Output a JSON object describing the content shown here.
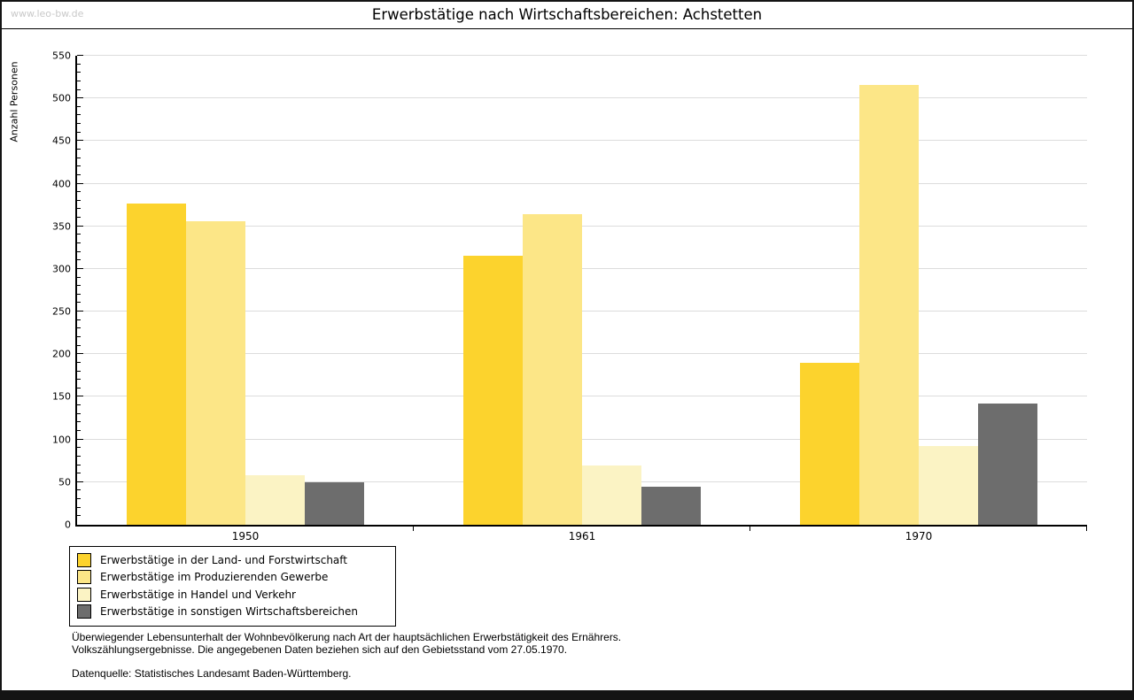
{
  "header": {
    "site": "www.leo-bw.de"
  },
  "chart_data": {
    "type": "bar",
    "title": "Erwerbstätige nach Wirtschaftsbereichen: Achstetten",
    "ylabel": "Anzahl Personen",
    "xlabel": "",
    "categories": [
      "1950",
      "1961",
      "1970"
    ],
    "series": [
      {
        "name": "Erwerbstätige in der Land- und Forstwirtschaft",
        "color": "#fcd32d",
        "values": [
          377,
          316,
          190
        ]
      },
      {
        "name": "Erwerbstätige im Produzierenden Gewerbe",
        "color": "#fce687",
        "values": [
          356,
          364,
          516
        ]
      },
      {
        "name": "Erwerbstätige in Handel und Verkehr",
        "color": "#fbf3c4",
        "values": [
          58,
          70,
          92
        ]
      },
      {
        "name": "Erwerbstätige in sonstigen Wirtschaftsbereichen",
        "color": "#6d6d6d",
        "values": [
          50,
          45,
          142
        ]
      }
    ],
    "ylim": [
      0,
      550
    ],
    "ytick_step": 50,
    "minor_tick_step": 10,
    "grid": true,
    "legend_position": "bottom-left",
    "axis_color": "#000000",
    "grid_color": "#dcdcdc"
  },
  "footer": {
    "note_line1": "Überwiegender Lebensunterhalt der Wohnbevölkerung nach Art der hauptsächlichen Erwerbstätigkeit des Ernährers.",
    "note_line2": "Volkszählungsergebnisse. Die angegebenen Daten beziehen sich auf den Gebietsstand vom 27.05.1970.",
    "source": "Datenquelle: Statistisches Landesamt Baden-Württemberg."
  }
}
